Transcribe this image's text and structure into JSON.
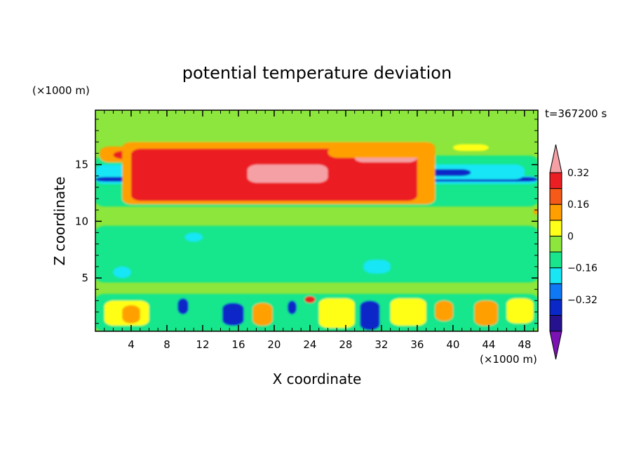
{
  "chart_data": {
    "type": "heatmap",
    "title": "potential temperature deviation",
    "xlabel": "X coordinate",
    "ylabel": "Z coordinate",
    "x_unit": "(×1000 m)",
    "y_unit": "(×1000 m)",
    "time_label": "t=367200 s",
    "xlim": [
      0,
      49.5
    ],
    "ylim": [
      0.3,
      19.8
    ],
    "x_ticks": [
      "4",
      "8",
      "12",
      "16",
      "20",
      "24",
      "28",
      "32",
      "36",
      "40",
      "44",
      "48"
    ],
    "y_ticks": [
      "5",
      "10",
      "15"
    ],
    "colorbar": {
      "levels": [
        -0.48,
        -0.4,
        -0.32,
        -0.24,
        -0.16,
        -0.08,
        0,
        0.08,
        0.16,
        0.24,
        0.32,
        0.4
      ],
      "colors": [
        "#7b12b4",
        "#26128e",
        "#0a28c8",
        "#0f78f5",
        "#19e6f5",
        "#19e68c",
        "#8ce63c",
        "#ffff19",
        "#ffa000",
        "#f55a19",
        "#eb1e23",
        "#f5a0a5"
      ],
      "labels": [
        "0.32",
        "0.16",
        "0",
        "-0.16",
        "-0.32"
      ],
      "extend": "both"
    },
    "background_level": "0",
    "regions": [
      {
        "level": "-0.08",
        "x": [
          0,
          49.5
        ],
        "z": [
          11.3,
          15.8
        ]
      },
      {
        "level": "0.16",
        "x": [
          0.5,
          16
        ],
        "z": [
          15.2,
          16.6
        ]
      },
      {
        "level": "0.32",
        "x": [
          2,
          13
        ],
        "z": [
          15.5,
          16.2
        ]
      },
      {
        "level": "-0.16",
        "x": [
          0,
          24
        ],
        "z": [
          13.5,
          15.0
        ]
      },
      {
        "level": "-0.32",
        "x": [
          6,
          22
        ],
        "z": [
          14.3,
          15.3
        ]
      },
      {
        "level": "-0.32",
        "x": [
          13,
          23
        ],
        "z": [
          15.0,
          16.6
        ]
      },
      {
        "level": "-0.48",
        "x": [
          14,
          22
        ],
        "z": [
          15.2,
          16.5
        ]
      },
      {
        "level": "-0.16",
        "x": [
          0,
          49.5
        ],
        "z": [
          13.3,
          14.0
        ]
      },
      {
        "level": "-0.32",
        "x": [
          0,
          49.5
        ],
        "z": [
          13.5,
          13.9
        ]
      },
      {
        "level": "-0.16",
        "x": [
          26,
          48
        ],
        "z": [
          13.7,
          15.0
        ]
      },
      {
        "level": "-0.32",
        "x": [
          30,
          42
        ],
        "z": [
          14.0,
          14.6
        ]
      },
      {
        "level": "0.16",
        "x": [
          3,
          38
        ],
        "z": [
          11.5,
          17.0
        ]
      },
      {
        "level": "0.32",
        "x": [
          4,
          36
        ],
        "z": [
          11.8,
          16.4
        ]
      },
      {
        "level": "0.4",
        "x": [
          17,
          26
        ],
        "z": [
          13.4,
          15.0
        ]
      },
      {
        "level": "0.4",
        "x": [
          29,
          36
        ],
        "z": [
          15.2,
          16.0
        ]
      },
      {
        "level": "0.16",
        "x": [
          26,
          38
        ],
        "z": [
          15.6,
          16.6
        ]
      },
      {
        "level": "-0.08",
        "x": [
          0,
          49.5
        ],
        "z": [
          0.3,
          3.6
        ]
      },
      {
        "level": "0.08",
        "x": [
          1,
          6
        ],
        "z": [
          0.8,
          3.0
        ]
      },
      {
        "level": "0.16",
        "x": [
          3,
          5
        ],
        "z": [
          1.0,
          2.6
        ]
      },
      {
        "level": "-0.32",
        "x": [
          9.2,
          10.4
        ],
        "z": [
          1.8,
          3.2
        ]
      },
      {
        "level": "-0.32",
        "x": [
          14.2,
          16.6
        ],
        "z": [
          0.8,
          2.8
        ]
      },
      {
        "level": "0.16",
        "x": [
          17.6,
          19.8
        ],
        "z": [
          0.8,
          2.8
        ]
      },
      {
        "level": "-0.32",
        "x": [
          21.5,
          22.5
        ],
        "z": [
          1.8,
          3.0
        ]
      },
      {
        "level": "0.32",
        "x": [
          23.4,
          24.6
        ],
        "z": [
          2.8,
          3.4
        ]
      },
      {
        "level": "0.08",
        "x": [
          25,
          29
        ],
        "z": [
          0.6,
          3.2
        ]
      },
      {
        "level": "-0.32",
        "x": [
          29.6,
          31.8
        ],
        "z": [
          0.4,
          3.0
        ]
      },
      {
        "level": "0.08",
        "x": [
          33,
          37
        ],
        "z": [
          0.8,
          3.2
        ]
      },
      {
        "level": "0.16",
        "x": [
          38,
          40
        ],
        "z": [
          1.2,
          3.0
        ]
      },
      {
        "level": "0.16",
        "x": [
          42.4,
          45
        ],
        "z": [
          0.8,
          3.0
        ]
      },
      {
        "level": "0.08",
        "x": [
          46,
          49
        ],
        "z": [
          1.0,
          3.2
        ]
      },
      {
        "level": "-0.08",
        "x": [
          0,
          49.5
        ],
        "z": [
          4.6,
          9.6
        ]
      },
      {
        "level": "-0.16",
        "x": [
          2,
          4
        ],
        "z": [
          5.0,
          6.0
        ]
      },
      {
        "level": "-0.16",
        "x": [
          30,
          33
        ],
        "z": [
          5.4,
          6.6
        ]
      },
      {
        "level": "-0.16",
        "x": [
          10,
          12
        ],
        "z": [
          8.2,
          9.0
        ]
      },
      {
        "level": "0",
        "x": [
          0,
          49.5
        ],
        "z": [
          17.0,
          19.8
        ]
      },
      {
        "level": "0.08",
        "x": [
          40,
          44
        ],
        "z": [
          16.2,
          16.8
        ]
      },
      {
        "level": "0.16",
        "x": [
          49,
          49.5
        ],
        "z": [
          10.6,
          11.1
        ]
      }
    ]
  }
}
